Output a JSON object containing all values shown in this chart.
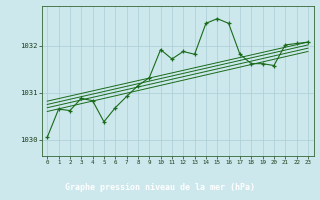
{
  "xlabel": "Graphe pression niveau de la mer (hPa)",
  "bg_color": "#cce8ec",
  "plot_bg_color": "#cce8ec",
  "line_color": "#1a6b1a",
  "grid_color": "#aacdd4",
  "axis_color": "#336633",
  "text_color": "#1a3d1a",
  "label_bg": "#2d5a27",
  "label_fg": "#ffffff",
  "ylim": [
    1029.65,
    1032.85
  ],
  "xlim": [
    -0.5,
    23.5
  ],
  "yticks": [
    1030,
    1031,
    1032
  ],
  "xticks": [
    0,
    1,
    2,
    3,
    4,
    5,
    6,
    7,
    8,
    9,
    10,
    11,
    12,
    13,
    14,
    15,
    16,
    17,
    18,
    19,
    20,
    21,
    22,
    23
  ],
  "main_series": [
    [
      0,
      1030.05
    ],
    [
      1,
      1030.65
    ],
    [
      2,
      1030.62
    ],
    [
      3,
      1030.88
    ],
    [
      4,
      1030.83
    ],
    [
      5,
      1030.38
    ],
    [
      6,
      1030.68
    ],
    [
      7,
      1030.92
    ],
    [
      8,
      1031.15
    ],
    [
      9,
      1031.32
    ],
    [
      10,
      1031.92
    ],
    [
      11,
      1031.72
    ],
    [
      12,
      1031.88
    ],
    [
      13,
      1031.82
    ],
    [
      14,
      1032.48
    ],
    [
      15,
      1032.58
    ],
    [
      16,
      1032.48
    ],
    [
      17,
      1031.82
    ],
    [
      18,
      1031.62
    ],
    [
      19,
      1031.62
    ],
    [
      20,
      1031.58
    ],
    [
      21,
      1032.02
    ],
    [
      22,
      1032.05
    ],
    [
      23,
      1032.08
    ]
  ],
  "trend_lines": [
    [
      [
        0,
        1030.6
      ],
      [
        23,
        1031.88
      ]
    ],
    [
      [
        0,
        1030.68
      ],
      [
        23,
        1031.95
      ]
    ],
    [
      [
        0,
        1030.75
      ],
      [
        23,
        1032.02
      ]
    ],
    [
      [
        0,
        1030.82
      ],
      [
        23,
        1032.08
      ]
    ]
  ]
}
